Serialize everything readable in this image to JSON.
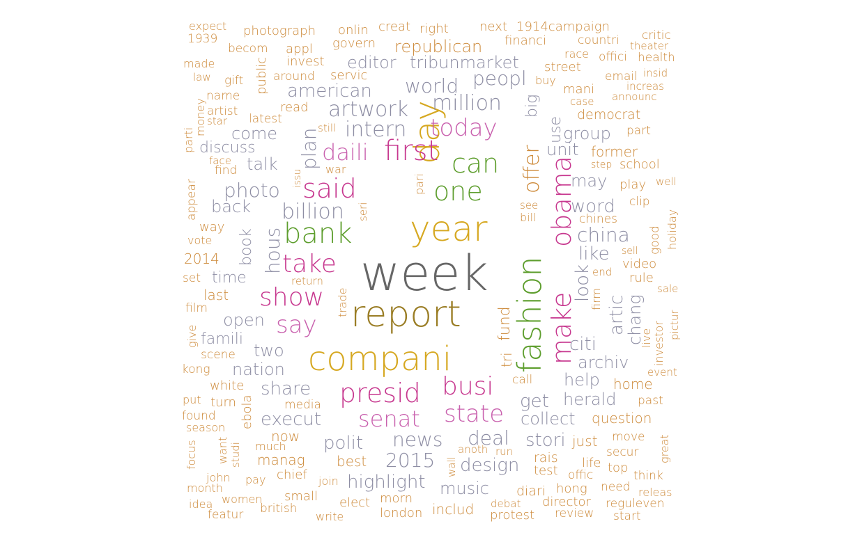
{
  "palette": {
    "orange": "#CD8A3A",
    "gray": "#8E8EA4",
    "pink": "#C7388F",
    "green": "#5E9E2E",
    "gold": "#D6A821",
    "olive": "#9A7D25",
    "dark": "#666666",
    "magenta": "#C961AE"
  },
  "words": [
    {
      "text": "week",
      "color": "dark"
    },
    {
      "text": "year",
      "color": "gold"
    },
    {
      "text": "report",
      "color": "olive"
    },
    {
      "text": "day",
      "color": "gold"
    },
    {
      "text": "compani",
      "color": "gold"
    },
    {
      "text": "fashion",
      "color": "green"
    },
    {
      "text": "make",
      "color": "pink"
    },
    {
      "text": "obama",
      "color": "pink"
    },
    {
      "text": "bank",
      "color": "green"
    },
    {
      "text": "one",
      "color": "green"
    },
    {
      "text": "can",
      "color": "green"
    },
    {
      "text": "first",
      "color": "pink"
    },
    {
      "text": "said",
      "color": "pink"
    },
    {
      "text": "take",
      "color": "pink"
    },
    {
      "text": "show",
      "color": "pink"
    },
    {
      "text": "presid",
      "color": "pink"
    },
    {
      "text": "busi",
      "color": "pink"
    },
    {
      "text": "senat",
      "color": "magenta"
    },
    {
      "text": "state",
      "color": "magenta"
    },
    {
      "text": "today",
      "color": "magenta"
    },
    {
      "text": "daili",
      "color": "magenta"
    },
    {
      "text": "say",
      "color": "magenta"
    },
    {
      "text": "offer",
      "color": "orange"
    },
    {
      "text": "artwork",
      "color": "gray"
    },
    {
      "text": "intern",
      "color": "gray"
    },
    {
      "text": "million",
      "color": "gray"
    },
    {
      "text": "billion",
      "color": "gray"
    },
    {
      "text": "photo",
      "color": "gray"
    },
    {
      "text": "plan",
      "color": "gray"
    },
    {
      "text": "hous",
      "color": "gray"
    },
    {
      "text": "world",
      "color": "gray"
    },
    {
      "text": "peopl",
      "color": "gray"
    },
    {
      "text": "american",
      "color": "gray"
    },
    {
      "text": "editor",
      "color": "gray"
    },
    {
      "text": "tribunmarket",
      "color": "gray"
    },
    {
      "text": "republican",
      "color": "orange"
    },
    {
      "text": "china",
      "color": "gray"
    },
    {
      "text": "word",
      "color": "gray"
    },
    {
      "text": "like",
      "color": "gray"
    },
    {
      "text": "look",
      "color": "gray"
    },
    {
      "text": "artic",
      "color": "gray"
    },
    {
      "text": "chang",
      "color": "gray"
    },
    {
      "text": "citi",
      "color": "gray"
    },
    {
      "text": "archiv",
      "color": "gray"
    },
    {
      "text": "help",
      "color": "gray"
    },
    {
      "text": "get",
      "color": "gray"
    },
    {
      "text": "herald",
      "color": "gray"
    },
    {
      "text": "collect",
      "color": "gray"
    },
    {
      "text": "execut",
      "color": "gray"
    },
    {
      "text": "share",
      "color": "gray"
    },
    {
      "text": "two",
      "color": "gray"
    },
    {
      "text": "open",
      "color": "gray"
    },
    {
      "text": "back",
      "color": "gray"
    },
    {
      "text": "come",
      "color": "gray"
    },
    {
      "text": "talk",
      "color": "gray"
    },
    {
      "text": "nation",
      "color": "gray"
    },
    {
      "text": "polit",
      "color": "gray"
    },
    {
      "text": "news",
      "color": "gray"
    },
    {
      "text": "deal",
      "color": "gray"
    },
    {
      "text": "stori",
      "color": "gray"
    },
    {
      "text": "2015",
      "color": "gray"
    },
    {
      "text": "design",
      "color": "gray"
    },
    {
      "text": "highlight",
      "color": "gray"
    },
    {
      "text": "music",
      "color": "gray"
    },
    {
      "text": "may",
      "color": "gray"
    },
    {
      "text": "unit",
      "color": "gray"
    },
    {
      "text": "group",
      "color": "gray"
    },
    {
      "text": "use",
      "color": "gray"
    },
    {
      "text": "big",
      "color": "gray"
    },
    {
      "text": "fund",
      "color": "orange"
    },
    {
      "text": "tri",
      "color": "orange"
    },
    {
      "text": "discuss",
      "color": "gray"
    },
    {
      "text": "famili",
      "color": "gray"
    },
    {
      "text": "time",
      "color": "gray"
    },
    {
      "text": "book",
      "color": "gray"
    },
    {
      "text": "expect",
      "color": "orange"
    },
    {
      "text": "photograph",
      "color": "orange"
    },
    {
      "text": "onlin",
      "color": "orange"
    },
    {
      "text": "creat",
      "color": "orange"
    },
    {
      "text": "right",
      "color": "orange"
    },
    {
      "text": "next",
      "color": "orange"
    },
    {
      "text": "1914campaign",
      "color": "orange"
    },
    {
      "text": "critic",
      "color": "orange"
    },
    {
      "text": "1939",
      "color": "orange"
    },
    {
      "text": "becom",
      "color": "orange"
    },
    {
      "text": "appl",
      "color": "orange"
    },
    {
      "text": "govern",
      "color": "orange"
    },
    {
      "text": "financi",
      "color": "orange"
    },
    {
      "text": "countri",
      "color": "orange"
    },
    {
      "text": "theater",
      "color": "orange"
    },
    {
      "text": "made",
      "color": "orange"
    },
    {
      "text": "invest",
      "color": "orange"
    },
    {
      "text": "race",
      "color": "orange"
    },
    {
      "text": "offici",
      "color": "orange"
    },
    {
      "text": "health",
      "color": "orange"
    },
    {
      "text": "law",
      "color": "orange"
    },
    {
      "text": "gift",
      "color": "orange"
    },
    {
      "text": "public",
      "color": "orange"
    },
    {
      "text": "around",
      "color": "orange"
    },
    {
      "text": "servic",
      "color": "orange"
    },
    {
      "text": "street",
      "color": "orange"
    },
    {
      "text": "email",
      "color": "orange"
    },
    {
      "text": "insid",
      "color": "orange"
    },
    {
      "text": "buy",
      "color": "orange"
    },
    {
      "text": "increas",
      "color": "orange"
    },
    {
      "text": "name",
      "color": "orange"
    },
    {
      "text": "mani",
      "color": "orange"
    },
    {
      "text": "announc",
      "color": "orange"
    },
    {
      "text": "read",
      "color": "orange"
    },
    {
      "text": "case",
      "color": "orange"
    },
    {
      "text": "artist",
      "color": "orange"
    },
    {
      "text": "democrat",
      "color": "orange"
    },
    {
      "text": "money",
      "color": "orange"
    },
    {
      "text": "star",
      "color": "orange"
    },
    {
      "text": "latest",
      "color": "orange"
    },
    {
      "text": "still",
      "color": "orange"
    },
    {
      "text": "part",
      "color": "orange"
    },
    {
      "text": "parti",
      "color": "orange"
    },
    {
      "text": "former",
      "color": "orange"
    },
    {
      "text": "face",
      "color": "orange"
    },
    {
      "text": "step",
      "color": "orange"
    },
    {
      "text": "school",
      "color": "orange"
    },
    {
      "text": "find",
      "color": "orange"
    },
    {
      "text": "war",
      "color": "orange"
    },
    {
      "text": "issu",
      "color": "orange"
    },
    {
      "text": "pari",
      "color": "orange"
    },
    {
      "text": "play",
      "color": "orange"
    },
    {
      "text": "well",
      "color": "orange"
    },
    {
      "text": "appear",
      "color": "orange"
    },
    {
      "text": "clip",
      "color": "orange"
    },
    {
      "text": "see",
      "color": "orange"
    },
    {
      "text": "bill",
      "color": "orange"
    },
    {
      "text": "seri",
      "color": "orange"
    },
    {
      "text": "chines",
      "color": "orange"
    },
    {
      "text": "holiday",
      "color": "orange"
    },
    {
      "text": "good",
      "color": "orange"
    },
    {
      "text": "way",
      "color": "orange"
    },
    {
      "text": "vote",
      "color": "orange"
    },
    {
      "text": "sell",
      "color": "orange"
    },
    {
      "text": "2014",
      "color": "orange"
    },
    {
      "text": "video",
      "color": "orange"
    },
    {
      "text": "end",
      "color": "orange"
    },
    {
      "text": "set",
      "color": "orange"
    },
    {
      "text": "return",
      "color": "orange"
    },
    {
      "text": "rule",
      "color": "orange"
    },
    {
      "text": "firm",
      "color": "orange"
    },
    {
      "text": "last",
      "color": "orange"
    },
    {
      "text": "sale",
      "color": "orange"
    },
    {
      "text": "trade",
      "color": "orange"
    },
    {
      "text": "film",
      "color": "orange"
    },
    {
      "text": "pictur",
      "color": "orange"
    },
    {
      "text": "live",
      "color": "orange"
    },
    {
      "text": "give",
      "color": "orange"
    },
    {
      "text": "investor",
      "color": "orange"
    },
    {
      "text": "scene",
      "color": "orange"
    },
    {
      "text": "kong",
      "color": "orange"
    },
    {
      "text": "event",
      "color": "orange"
    },
    {
      "text": "white",
      "color": "orange"
    },
    {
      "text": "call",
      "color": "orange"
    },
    {
      "text": "home",
      "color": "orange"
    },
    {
      "text": "put",
      "color": "orange"
    },
    {
      "text": "turn",
      "color": "orange"
    },
    {
      "text": "media",
      "color": "orange"
    },
    {
      "text": "past",
      "color": "orange"
    },
    {
      "text": "found",
      "color": "orange"
    },
    {
      "text": "ebola",
      "color": "orange"
    },
    {
      "text": "question",
      "color": "orange"
    },
    {
      "text": "season",
      "color": "orange"
    },
    {
      "text": "now",
      "color": "orange"
    },
    {
      "text": "focus",
      "color": "orange"
    },
    {
      "text": "want",
      "color": "orange"
    },
    {
      "text": "studi",
      "color": "orange"
    },
    {
      "text": "much",
      "color": "orange"
    },
    {
      "text": "just",
      "color": "orange"
    },
    {
      "text": "move",
      "color": "orange"
    },
    {
      "text": "great",
      "color": "orange"
    },
    {
      "text": "anoth",
      "color": "orange"
    },
    {
      "text": "run",
      "color": "orange"
    },
    {
      "text": "secur",
      "color": "orange"
    },
    {
      "text": "manag",
      "color": "orange"
    },
    {
      "text": "best",
      "color": "orange"
    },
    {
      "text": "rais",
      "color": "orange"
    },
    {
      "text": "life",
      "color": "orange"
    },
    {
      "text": "top",
      "color": "orange"
    },
    {
      "text": "wall",
      "color": "orange"
    },
    {
      "text": "test",
      "color": "orange"
    },
    {
      "text": "offic",
      "color": "orange"
    },
    {
      "text": "think",
      "color": "orange"
    },
    {
      "text": "john",
      "color": "orange"
    },
    {
      "text": "pay",
      "color": "orange"
    },
    {
      "text": "chief",
      "color": "orange"
    },
    {
      "text": "join",
      "color": "orange"
    },
    {
      "text": "month",
      "color": "orange"
    },
    {
      "text": "hong",
      "color": "orange"
    },
    {
      "text": "need",
      "color": "orange"
    },
    {
      "text": "releas",
      "color": "orange"
    },
    {
      "text": "idea",
      "color": "orange"
    },
    {
      "text": "women",
      "color": "orange"
    },
    {
      "text": "small",
      "color": "orange"
    },
    {
      "text": "morn",
      "color": "orange"
    },
    {
      "text": "diari",
      "color": "orange"
    },
    {
      "text": "debat",
      "color": "orange"
    },
    {
      "text": "director",
      "color": "orange"
    },
    {
      "text": "reguleven",
      "color": "orange"
    },
    {
      "text": "featur",
      "color": "orange"
    },
    {
      "text": "british",
      "color": "orange"
    },
    {
      "text": "write",
      "color": "orange"
    },
    {
      "text": "elect",
      "color": "orange"
    },
    {
      "text": "london",
      "color": "orange"
    },
    {
      "text": "includ",
      "color": "orange"
    },
    {
      "text": "protest",
      "color": "orange"
    },
    {
      "text": "review",
      "color": "orange"
    },
    {
      "text": "start",
      "color": "orange"
    }
  ]
}
